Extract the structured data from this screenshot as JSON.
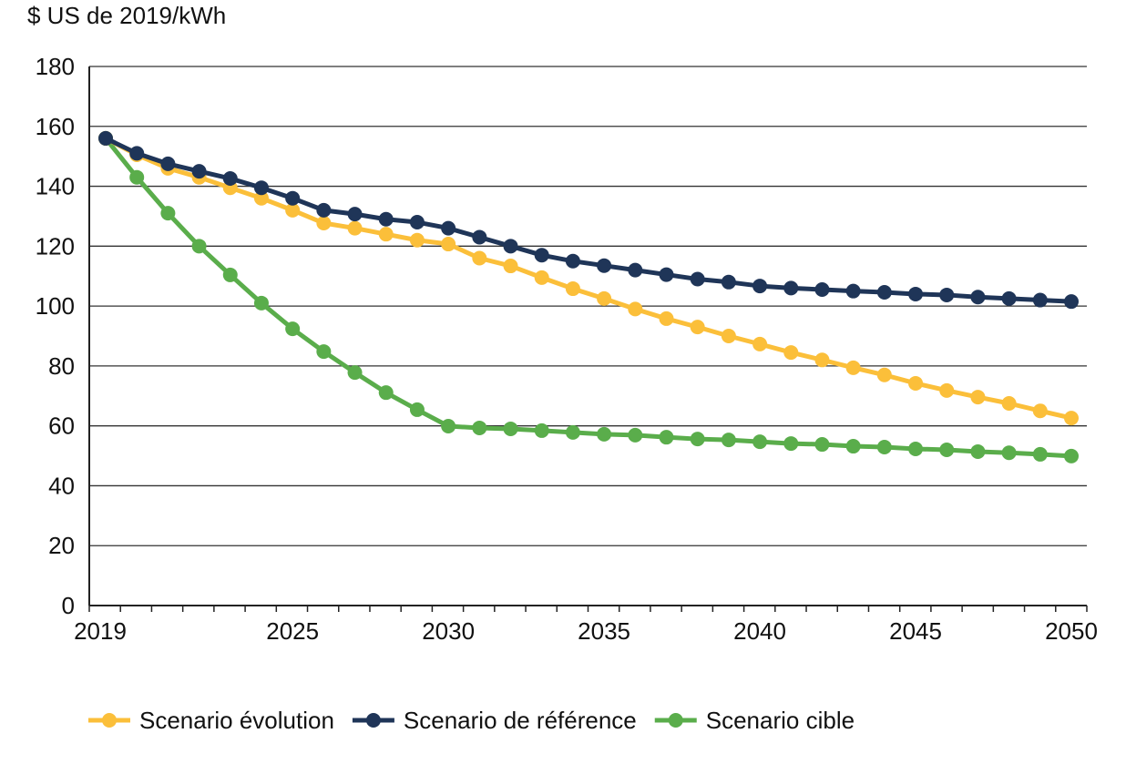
{
  "chart_data": {
    "type": "line",
    "title": "",
    "ylabel": "$ US de 2019/kWh",
    "xlabel": "",
    "ylim": [
      0,
      180
    ],
    "yticks": [
      0,
      20,
      40,
      60,
      80,
      100,
      120,
      140,
      160,
      180
    ],
    "xlim": [
      2019,
      2050
    ],
    "xticks": [
      2019,
      2025,
      2030,
      2035,
      2040,
      2045,
      2050
    ],
    "grid": "horizontal",
    "legend_position": "bottom",
    "x": [
      2019,
      2020,
      2021,
      2022,
      2023,
      2024,
      2025,
      2026,
      2027,
      2028,
      2029,
      2030,
      2031,
      2032,
      2033,
      2034,
      2035,
      2036,
      2037,
      2038,
      2039,
      2040,
      2041,
      2042,
      2043,
      2044,
      2045,
      2046,
      2047,
      2048,
      2049,
      2050
    ],
    "series": [
      {
        "name": "Scenario cible",
        "color": "#5aad4b",
        "values": [
          156,
          143,
          131,
          120,
          110.4,
          101,
          92.4,
          84.8,
          77.8,
          71.1,
          65.4,
          59.9,
          59.3,
          59,
          58.4,
          57.8,
          57.2,
          56.9,
          56.2,
          55.6,
          55.3,
          54.7,
          54.1,
          53.8,
          53.2,
          52.9,
          52.3,
          52,
          51.4,
          51,
          50.5,
          49.9
        ]
      },
      {
        "name": "Scenario évolution",
        "color": "#fbbf3a",
        "values": [
          156,
          150.5,
          146,
          143,
          139.5,
          136,
          132,
          127.7,
          126,
          124,
          122,
          120.7,
          116,
          113.4,
          109.5,
          105.8,
          102.5,
          99,
          95.8,
          93,
          90,
          87.3,
          84.5,
          82,
          79.4,
          77,
          74.2,
          71.8,
          69.6,
          67.5,
          65,
          62.6
        ]
      },
      {
        "name": "Scenario de référence",
        "color": "#1f3558",
        "values": [
          156,
          151,
          147.5,
          145,
          142.6,
          139.5,
          136,
          132,
          130.7,
          129,
          128,
          126,
          123,
          120,
          117,
          115,
          113.5,
          112,
          110.5,
          109,
          108,
          106.7,
          106,
          105.5,
          105,
          104.6,
          104,
          103.7,
          103,
          102.5,
          102,
          101.5
        ]
      }
    ],
    "legend_order": [
      1,
      2,
      0
    ]
  }
}
